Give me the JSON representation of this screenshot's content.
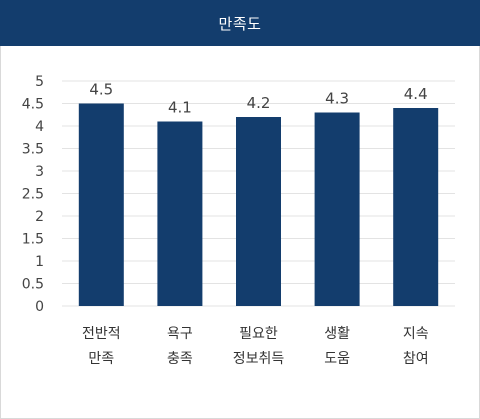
{
  "header": {
    "title": "만족도"
  },
  "colors": {
    "bar": "#133d6d",
    "header": "#133d6d",
    "grid": "#e3e3e3"
  },
  "chart_data": {
    "type": "bar",
    "title": "만족도",
    "xlabel": "",
    "ylabel": "",
    "ylim": [
      0,
      5
    ],
    "yticks": [
      "5",
      "4.5",
      "4",
      "3.5",
      "3",
      "2.5",
      "2",
      "1.5",
      "1",
      "0.5",
      "0"
    ],
    "grid": true,
    "categories": [
      [
        "전반적",
        "만족"
      ],
      [
        "욕구",
        "충족"
      ],
      [
        "필요한",
        "정보취득"
      ],
      [
        "생활",
        "도움"
      ],
      [
        "지속",
        "참여"
      ]
    ],
    "values": [
      4.5,
      4.1,
      4.2,
      4.3,
      4.4
    ],
    "value_labels": [
      "4.5",
      "4.1",
      "4.2",
      "4.3",
      "4.4"
    ]
  }
}
